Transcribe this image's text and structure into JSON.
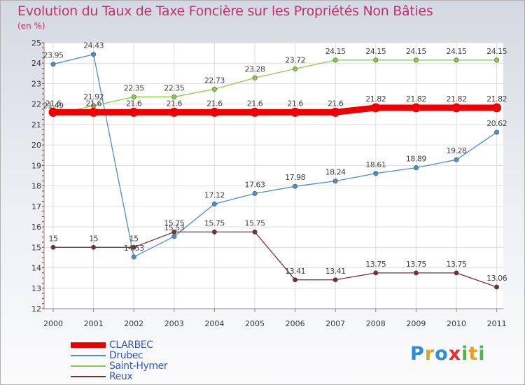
{
  "title": "Evolution du Taux de Taxe Foncière sur les Propriétés Non Bâties",
  "unit_label": "(en %)",
  "logo": {
    "letters": [
      "P",
      "r",
      "o",
      "x",
      "i",
      "t",
      "i"
    ],
    "colors": [
      "#2a8fd6",
      "#e8a020",
      "#2a8fd6",
      "#e03030",
      "#4cb848",
      "#e8a020",
      "#4cb848"
    ]
  },
  "chart_data": {
    "type": "line",
    "title": "Evolution du Taux de Taxe Foncière sur les Propriétés Non Bâties",
    "ylabel": "(en %)",
    "xlabel": "",
    "ylim": [
      12,
      25
    ],
    "yticks": [
      12,
      13,
      14,
      15,
      16,
      17,
      18,
      19,
      20,
      21,
      22,
      23,
      24,
      25
    ],
    "categories": [
      "2000",
      "2001",
      "2002",
      "2003",
      "2004",
      "2005",
      "2006",
      "2007",
      "2008",
      "2009",
      "2010",
      "2011"
    ],
    "series": [
      {
        "name": "CLARBEC",
        "color": "#ee0000",
        "values": [
          21.6,
          21.6,
          21.6,
          21.6,
          21.6,
          21.6,
          21.6,
          21.6,
          21.82,
          21.82,
          21.82,
          21.82
        ],
        "labels": [
          "21.6",
          "21.6",
          "21.6",
          "21.6",
          "21.6",
          "21.6",
          "21.6",
          "21.6",
          "21.82",
          "21.82",
          "21.82",
          "21.82"
        ]
      },
      {
        "name": "Drubec",
        "color": "#4a8fc8",
        "values": [
          23.95,
          24.43,
          14.53,
          15.53,
          17.12,
          17.63,
          17.98,
          18.24,
          18.61,
          18.89,
          19.28,
          20.62
        ],
        "labels": [
          "23.95",
          "24.43",
          "14.53",
          "15.53",
          "17.12",
          "17.63",
          "17.98",
          "18.24",
          "18.61",
          "18.89",
          "19.28",
          "20.62"
        ]
      },
      {
        "name": "Saint-Hymer",
        "color": "#88cc44",
        "values": [
          21.49,
          21.92,
          22.35,
          22.35,
          22.73,
          23.28,
          23.72,
          24.15,
          24.15,
          24.15,
          24.15,
          24.15
        ],
        "labels": [
          "21.49",
          "21.92",
          "22.35",
          "22.35",
          "22.73",
          "23.28",
          "23.72",
          "24.15",
          "24.15",
          "24.15",
          "24.15",
          "24.15"
        ]
      },
      {
        "name": "Reux",
        "color": "#7a3030",
        "values": [
          15,
          15,
          15,
          15.75,
          15.75,
          15.75,
          13.41,
          13.41,
          13.75,
          13.75,
          13.75,
          13.06
        ],
        "labels": [
          "15",
          "15",
          "15",
          "15.75",
          "15.75",
          "15.75",
          "13.41",
          "13.41",
          "13.75",
          "13.75",
          "13.75",
          "13.06"
        ]
      }
    ]
  }
}
